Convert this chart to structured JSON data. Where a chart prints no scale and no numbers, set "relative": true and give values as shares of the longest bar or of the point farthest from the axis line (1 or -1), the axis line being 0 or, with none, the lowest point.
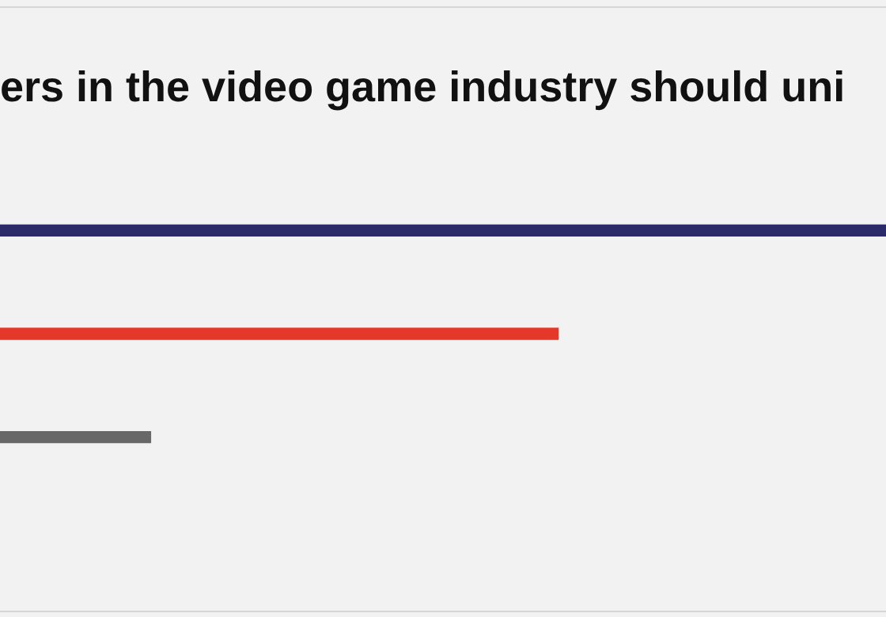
{
  "chart_data": {
    "type": "bar",
    "orientation": "horizontal",
    "relative": true,
    "title": "ers in the video game industry should uni",
    "categories": [
      null,
      null,
      null
    ],
    "values": [
      1,
      0.63,
      0.17
    ],
    "colors": [
      "#2b2a6b",
      "#e3382a",
      "#686868"
    ],
    "legend": false
  }
}
